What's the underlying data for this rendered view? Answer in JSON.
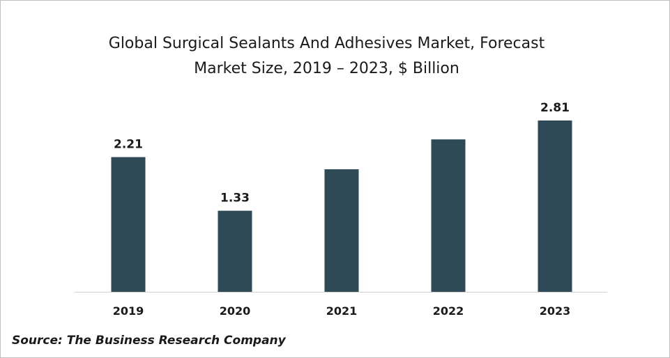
{
  "chart_data": {
    "type": "bar",
    "title": "Global Surgical Sealants And Adhesives Market, Forecast",
    "subtitle": "Market Size, 2019 – 2023, $ Billion",
    "categories": [
      "2019",
      "2020",
      "2021",
      "2022",
      "2023"
    ],
    "values": [
      2.21,
      1.33,
      2.01,
      2.5,
      2.81
    ],
    "data_labels": [
      "2.21",
      "1.33",
      "",
      "",
      "2.81"
    ],
    "ylim": [
      0,
      2.81
    ],
    "bar_color": "#2e4a57",
    "grid": false,
    "legend": "none"
  },
  "source": "Source: The Business Research Company"
}
